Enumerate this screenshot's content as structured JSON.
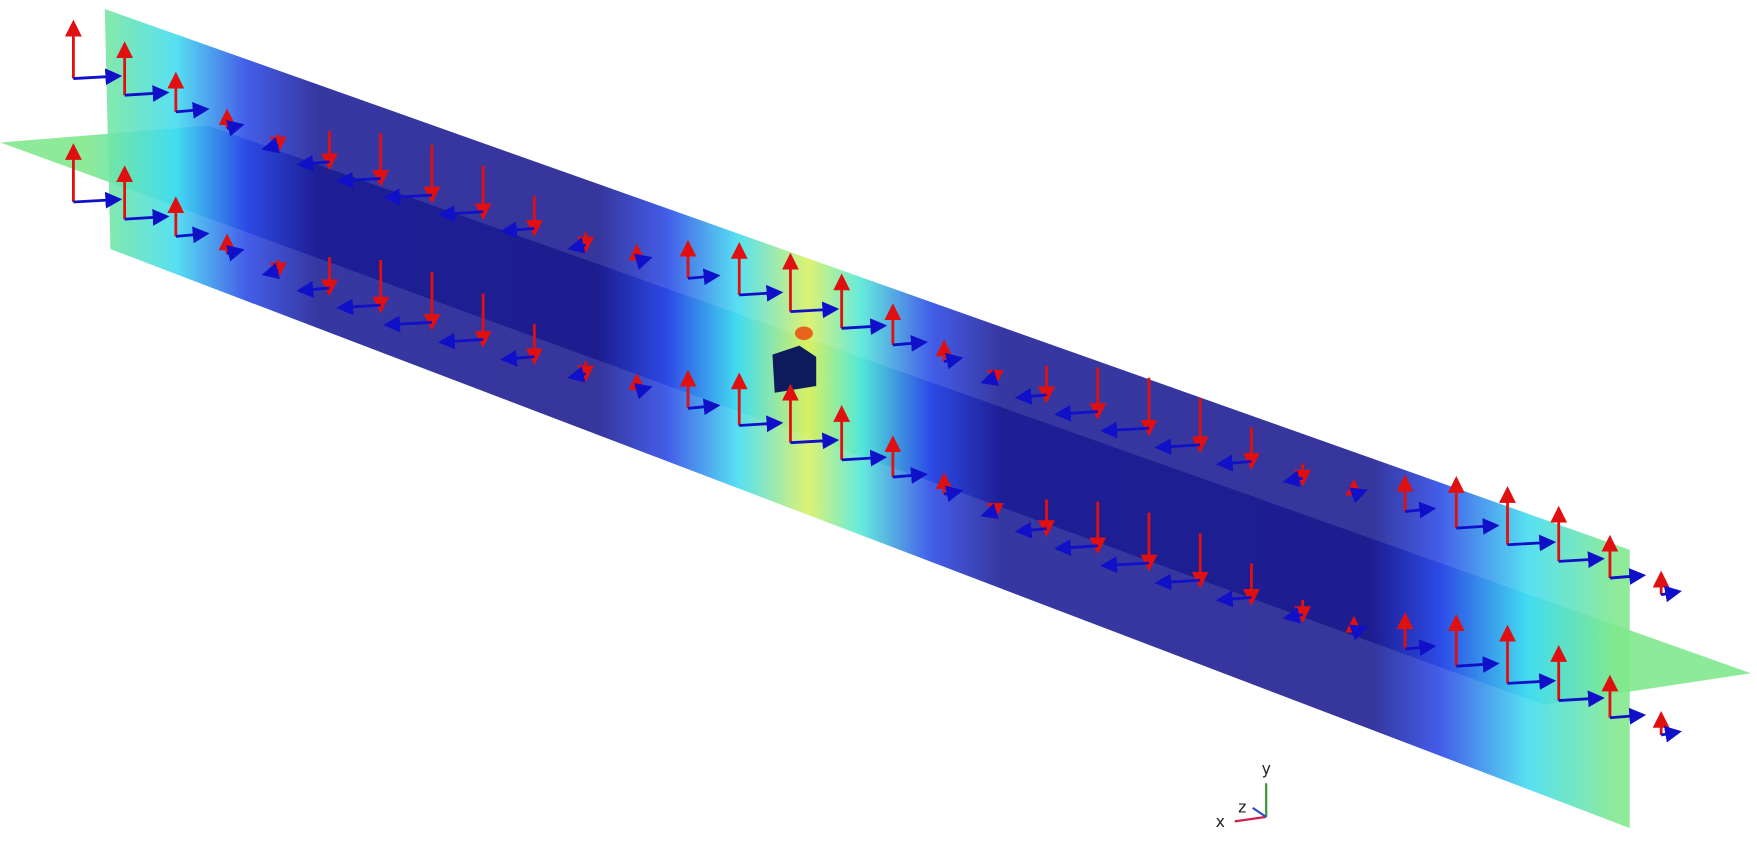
{
  "triad": {
    "x": "x",
    "y": "y",
    "z": "z"
  }
}
